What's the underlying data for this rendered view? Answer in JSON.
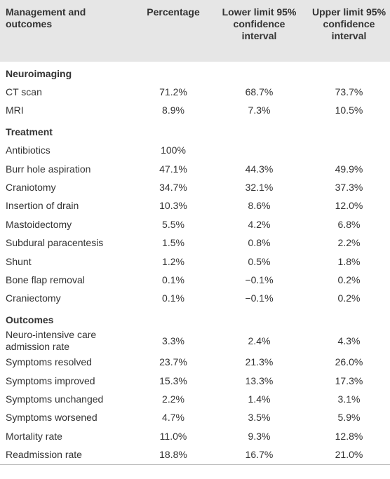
{
  "table": {
    "header": [
      "Management and outcomes",
      "Percentage",
      "Lower limit 95% confidence interval",
      "Upper limit 95% confidence interval"
    ],
    "sections": [
      {
        "title": "Neuroimaging",
        "rows": [
          [
            "CT scan",
            "71.2%",
            "68.7%",
            "73.7%"
          ],
          [
            "MRI",
            "8.9%",
            "7.3%",
            "10.5%"
          ]
        ]
      },
      {
        "title": "Treatment",
        "rows": [
          [
            "Antibiotics",
            "100%",
            null,
            null
          ],
          [
            "Burr hole aspiration",
            "47.1%",
            "44.3%",
            "49.9%"
          ],
          [
            "Craniotomy",
            "34.7%",
            "32.1%",
            "37.3%"
          ],
          [
            "Insertion of drain",
            "10.3%",
            "8.6%",
            "12.0%"
          ],
          [
            "Mastoidectomy",
            "5.5%",
            "4.2%",
            "6.8%"
          ],
          [
            "Subdural paracentesis",
            "1.5%",
            "0.8%",
            "2.2%"
          ],
          [
            "Shunt",
            "1.2%",
            "0.5%",
            "1.8%"
          ],
          [
            "Bone flap removal",
            "0.1%",
            "−0.1%",
            "0.2%"
          ],
          [
            "Craniectomy",
            "0.1%",
            "−0.1%",
            "0.2%"
          ]
        ]
      },
      {
        "title": "Outcomes",
        "rows": [
          [
            "Neuro-intensive care admission rate",
            "3.3%",
            "2.4%",
            "4.3%"
          ],
          [
            "Symptoms resolved",
            "23.7%",
            "21.3%",
            "26.0%"
          ],
          [
            "Symptoms improved",
            "15.3%",
            "13.3%",
            "17.3%"
          ],
          [
            "Symptoms unchanged",
            "2.2%",
            "1.4%",
            "3.1%"
          ],
          [
            "Symptoms worsened",
            "4.7%",
            "3.5%",
            "5.9%"
          ],
          [
            "Mortality rate",
            "11.0%",
            "9.3%",
            "12.8%"
          ],
          [
            "Readmission rate",
            "18.8%",
            "16.7%",
            "21.0%"
          ]
        ]
      }
    ]
  }
}
